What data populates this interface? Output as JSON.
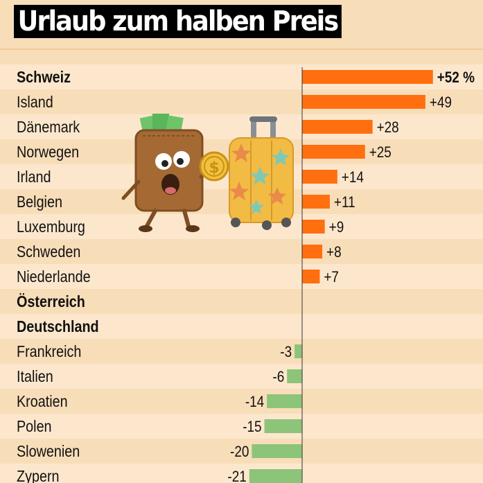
{
  "header": {
    "title": "Urlaub zum halben Preis"
  },
  "colors": {
    "positive": "#ff6f0f",
    "negative": "#8cc47a",
    "stripe_light": "#fce7cd",
    "stripe_dark": "#f8ddb9"
  },
  "chart_data": {
    "type": "bar",
    "orientation": "horizontal",
    "title": "Urlaub zum halben Preis",
    "categories": [
      "Schweiz",
      "Island",
      "Dänemark",
      "Norwegen",
      "Irland",
      "Belgien",
      "Luxemburg",
      "Schweden",
      "Niederlande",
      "Österreich",
      "Deutschland",
      "Frankreich",
      "Italien",
      "Kroatien",
      "Polen",
      "Slowenien",
      "Zypern"
    ],
    "values": [
      52,
      49,
      28,
      25,
      14,
      11,
      9,
      8,
      7,
      0,
      0,
      -3,
      -6,
      -14,
      -15,
      -20,
      -21
    ],
    "labels": [
      "+52 %",
      "+49",
      "+28",
      "+25",
      "+14",
      "+11",
      "+9",
      "+8",
      "+7",
      "",
      "",
      "-3",
      "-6",
      "-14",
      "-15",
      "-20",
      "-21"
    ],
    "bold_categories": [
      "Schweiz",
      "Österreich",
      "Deutschland"
    ],
    "xlim": [
      -22,
      54
    ],
    "grid": false
  }
}
